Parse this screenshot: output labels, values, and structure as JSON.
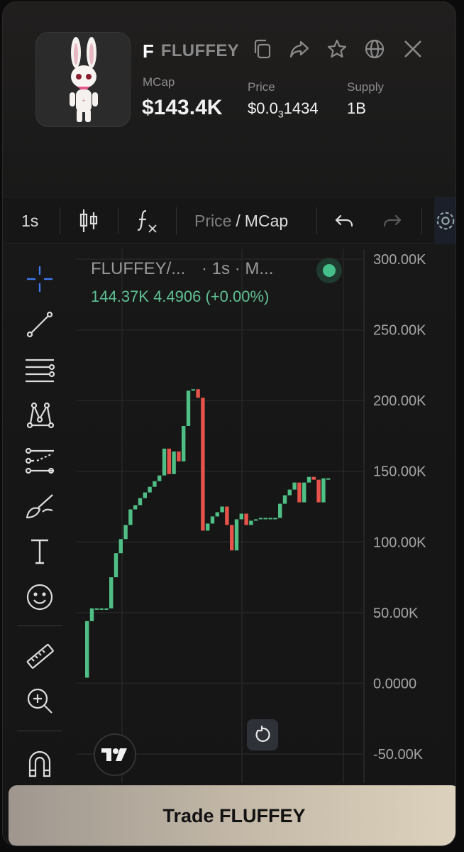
{
  "token": {
    "letter": "F",
    "name": "FLUFFEY"
  },
  "stats": {
    "mcap_label": "MCap",
    "mcap_value": "$143.4K",
    "price_label": "Price",
    "price_prefix": "$0.0",
    "price_sub": "3",
    "price_rest": "1434",
    "supply_label": "Supply",
    "supply_value": "1B"
  },
  "header_icons": [
    "copy-icon",
    "share-icon",
    "star-icon",
    "globe-icon",
    "x-icon"
  ],
  "toolbar": {
    "interval": "1s",
    "price_label": "Price",
    "slash": "/",
    "mcap_label": "MCap"
  },
  "tools": [
    "crosshair-icon",
    "trend-line-icon",
    "fib-retracement-icon",
    "pattern-icon",
    "prediction-icon",
    "brush-icon",
    "text-icon",
    "emoji-icon",
    "ruler-icon",
    "zoom-in-icon",
    "magnet-icon"
  ],
  "legend": {
    "title": "FLUFFEY/...",
    "meta": "· 1s · M...",
    "values": "144.37K  4.4906 (+0.00%)"
  },
  "colors": {
    "up": "#4fbf85",
    "down": "#e5534b",
    "accent": "#45c08a"
  },
  "chart_data": {
    "type": "candlestick",
    "y_ticks": [
      "300.00K",
      "250.00K",
      "200.00K",
      "150.00K",
      "100.00K",
      "50.00K",
      "0.0000",
      "-50.00K"
    ],
    "ylim": [
      -50000,
      300000
    ],
    "candles": [
      {
        "o": 4,
        "c": 44
      },
      {
        "o": 44,
        "c": 53
      },
      {
        "o": 53,
        "c": 53
      },
      {
        "o": 53,
        "c": 53
      },
      {
        "o": 53,
        "c": 53
      },
      {
        "o": 53,
        "c": 75
      },
      {
        "o": 75,
        "c": 92
      },
      {
        "o": 92,
        "c": 102
      },
      {
        "o": 102,
        "c": 112
      },
      {
        "o": 112,
        "c": 123
      },
      {
        "o": 123,
        "c": 126
      },
      {
        "o": 126,
        "c": 131
      },
      {
        "o": 131,
        "c": 135
      },
      {
        "o": 135,
        "c": 139
      },
      {
        "o": 139,
        "c": 143
      },
      {
        "o": 143,
        "c": 147
      },
      {
        "o": 147,
        "c": 166
      },
      {
        "o": 166,
        "c": 148
      },
      {
        "o": 148,
        "c": 164
      },
      {
        "o": 164,
        "c": 157
      },
      {
        "o": 157,
        "c": 182
      },
      {
        "o": 182,
        "c": 207
      },
      {
        "o": 207,
        "c": 208
      },
      {
        "o": 208,
        "c": 202
      },
      {
        "o": 202,
        "c": 108
      },
      {
        "o": 108,
        "c": 113
      },
      {
        "o": 113,
        "c": 118
      },
      {
        "o": 118,
        "c": 121
      },
      {
        "o": 121,
        "c": 125
      },
      {
        "o": 125,
        "c": 112
      },
      {
        "o": 112,
        "c": 94
      },
      {
        "o": 94,
        "c": 116
      },
      {
        "o": 116,
        "c": 120
      },
      {
        "o": 120,
        "c": 112
      },
      {
        "o": 112,
        "c": 115
      },
      {
        "o": 115,
        "c": 116
      },
      {
        "o": 116,
        "c": 117
      },
      {
        "o": 117,
        "c": 117
      },
      {
        "o": 117,
        "c": 117
      },
      {
        "o": 117,
        "c": 117
      },
      {
        "o": 117,
        "c": 127
      },
      {
        "o": 127,
        "c": 133
      },
      {
        "o": 133,
        "c": 137
      },
      {
        "o": 137,
        "c": 142
      },
      {
        "o": 142,
        "c": 128
      },
      {
        "o": 128,
        "c": 142
      },
      {
        "o": 142,
        "c": 146
      },
      {
        "o": 146,
        "c": 144
      },
      {
        "o": 144,
        "c": 128
      },
      {
        "o": 128,
        "c": 145
      },
      {
        "o": 145,
        "c": 145
      }
    ]
  },
  "trade_button": "Trade FLUFFEY"
}
